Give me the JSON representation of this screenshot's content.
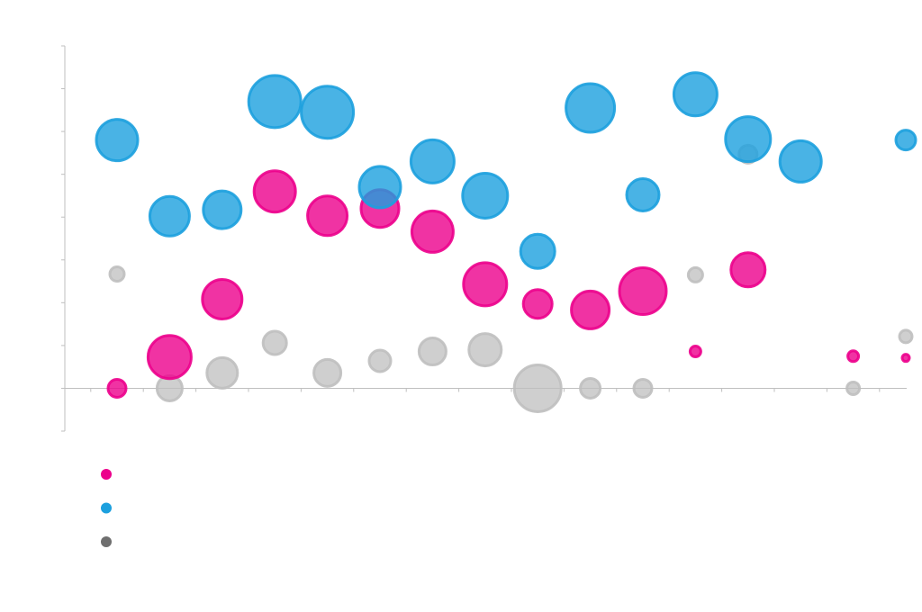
{
  "chart_data": {
    "type": "bubble",
    "title": "",
    "xlabel": "",
    "ylabel": "",
    "xlim": [
      0,
      16
    ],
    "ylim": [
      -1,
      8
    ],
    "grid": false,
    "legend_position": "bottom-left",
    "x": [
      1,
      2,
      3,
      4,
      5,
      6,
      7,
      8,
      9,
      10,
      11,
      12,
      13,
      14,
      15,
      16
    ],
    "series": [
      {
        "color": "#ec008c",
        "values": [
          0.0,
          0.73,
          2.08,
          4.6,
          4.03,
          4.2,
          3.66,
          2.43,
          1.97,
          1.83,
          2.27,
          0.86,
          2.77,
          null,
          0.75,
          0.71
        ],
        "sizes": [
          10,
          24,
          22,
          23,
          22,
          21,
          23,
          24,
          16,
          21,
          26,
          6,
          19,
          null,
          6,
          4
        ]
      },
      {
        "color": "#1ca0de",
        "values": [
          5.8,
          4.02,
          4.17,
          6.7,
          6.45,
          4.7,
          5.3,
          4.5,
          3.2,
          6.55,
          4.52,
          6.87,
          5.82,
          5.3,
          null,
          5.8
        ],
        "sizes": [
          23,
          22,
          21,
          29,
          29,
          23,
          24,
          25,
          19,
          27,
          18,
          24,
          25,
          23,
          null,
          11
        ]
      },
      {
        "color": "#bfbfbf",
        "values": [
          2.67,
          0.0,
          0.36,
          1.06,
          0.36,
          0.64,
          0.86,
          0.9,
          0.0,
          0.0,
          0.0,
          2.65,
          5.47,
          null,
          0.0,
          1.21
        ],
        "sizes": [
          8,
          14,
          17,
          13,
          15,
          12,
          15,
          18,
          26,
          11,
          10,
          8,
          10,
          null,
          7,
          7
        ]
      }
    ]
  }
}
